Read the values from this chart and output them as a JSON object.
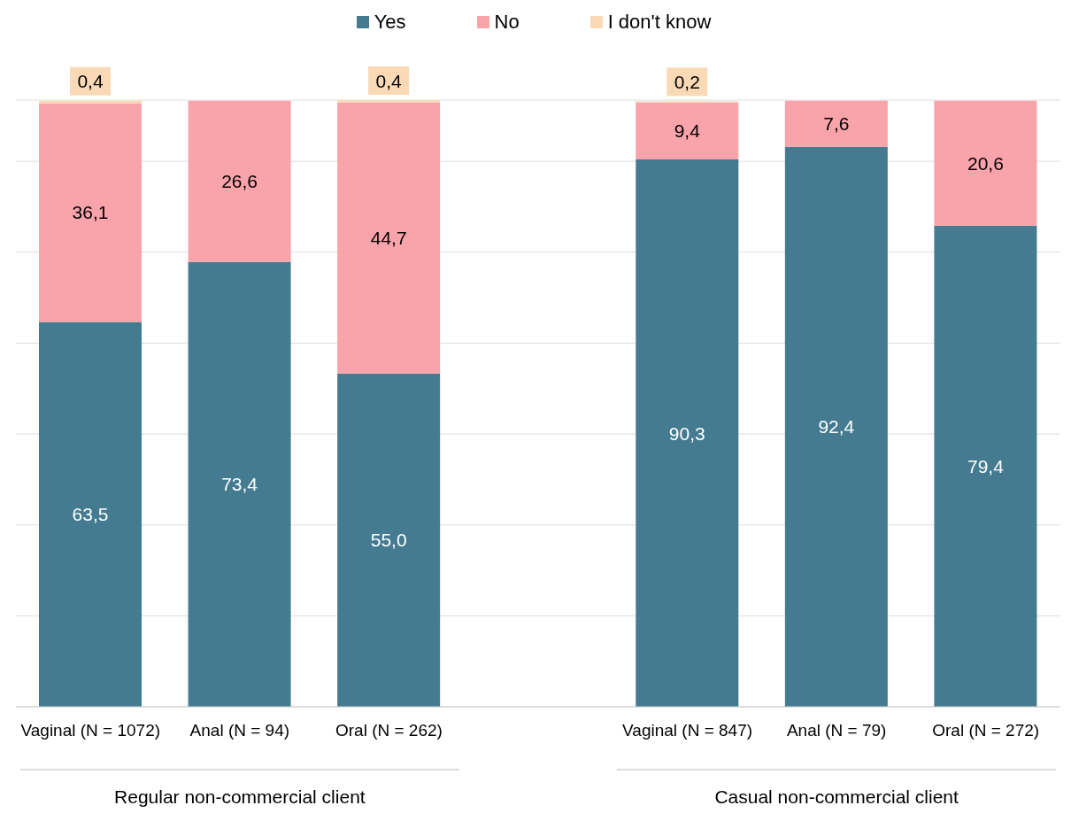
{
  "chart_data": {
    "type": "bar",
    "stacked": true,
    "categories": [
      "Vaginal (N = 1072)",
      "Anal (N = 94)",
      "Oral (N = 262)",
      null,
      "Vaginal (N = 847)",
      "Anal (N = 79)",
      "Oral (N = 272)"
    ],
    "series": [
      {
        "name": "Yes",
        "color": "#447b90",
        "values": [
          63.5,
          73.4,
          55.0,
          null,
          90.3,
          92.4,
          79.4
        ],
        "value_labels": [
          "63,5",
          "73,4",
          "55,0",
          null,
          "90,3",
          "92,4",
          "79,4"
        ]
      },
      {
        "name": "No",
        "color": "#f9a3aa",
        "values": [
          36.1,
          26.6,
          44.7,
          null,
          9.4,
          7.6,
          20.6
        ],
        "value_labels": [
          "36,1",
          "26,6",
          "44,7",
          null,
          "9,4",
          "7,6",
          "20,6"
        ]
      },
      {
        "name": "I don't know",
        "color": "#fad9b7",
        "values": [
          0.4,
          0,
          0.4,
          null,
          0.2,
          0,
          0
        ],
        "value_labels": [
          "0,4",
          null,
          "0,4",
          null,
          "0,2",
          null,
          null
        ]
      }
    ],
    "tick_labels": "x",
    "grid": "y",
    "legend": "top",
    "annotations": [
      "Regular non-commercial client",
      "Casual non-commercial client"
    ]
  }
}
